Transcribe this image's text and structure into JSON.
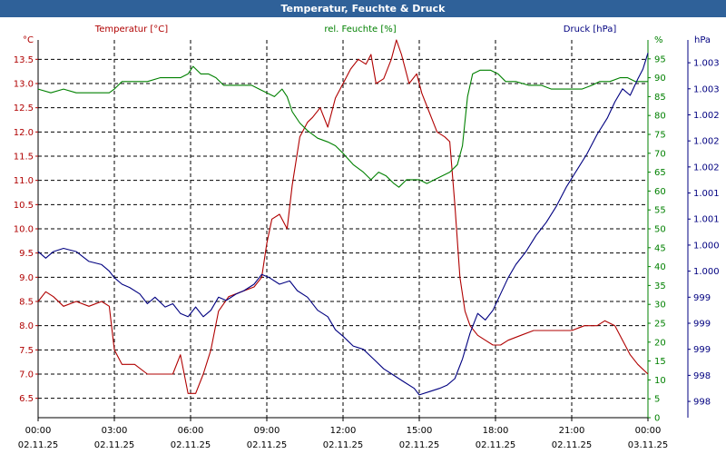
{
  "window": {
    "title": "Temperatur, Feuchte & Druck"
  },
  "chart_data": {
    "type": "line",
    "title": "Temperatur, Feuchte & Druck",
    "legend": "top",
    "grid": true,
    "x_ticks": [
      {
        "h": 0,
        "time": "00:00",
        "date": "02.11.25"
      },
      {
        "h": 3,
        "time": "03:00",
        "date": "02.11.25"
      },
      {
        "h": 6,
        "time": "06:00",
        "date": "02.11.25"
      },
      {
        "h": 9,
        "time": "09:00",
        "date": "02.11.25"
      },
      {
        "h": 12,
        "time": "12:00",
        "date": "02.11.25"
      },
      {
        "h": 15,
        "time": "15:00",
        "date": "02.11.25"
      },
      {
        "h": 18,
        "time": "18:00",
        "date": "02.11.25"
      },
      {
        "h": 21,
        "time": "21:00",
        "date": "02.11.25"
      },
      {
        "h": 24,
        "time": "00:00",
        "date": "03.11.25"
      }
    ],
    "xlim": [
      0,
      24
    ],
    "axes": {
      "temperature": {
        "label": "Temperatur [°C]",
        "unit": "°C",
        "color": "#b00000",
        "ylim": [
          6.1,
          13.9
        ],
        "ticks": [
          6.5,
          7.0,
          7.5,
          8.0,
          8.5,
          9.0,
          9.5,
          10.0,
          10.5,
          11.0,
          11.5,
          12.0,
          12.5,
          13.0,
          13.5
        ],
        "tick_labels": [
          "6.5",
          "7.0",
          "7.5",
          "8.0",
          "8.5",
          "9.0",
          "9.5",
          "10.0",
          "10.5",
          "11.0",
          "11.5",
          "12.0",
          "12.5",
          "13.0",
          "13.5"
        ]
      },
      "humidity": {
        "label": "rel. Feuchte [%]",
        "unit": "%",
        "color": "#008000",
        "ylim": [
          0,
          100
        ],
        "ticks": [
          0,
          5,
          10,
          15,
          20,
          25,
          30,
          35,
          40,
          45,
          50,
          55,
          60,
          65,
          70,
          75,
          80,
          85,
          90,
          95
        ],
        "tick_labels": [
          "0",
          "5",
          "10",
          "15",
          "20",
          "25",
          "30",
          "35",
          "40",
          "45",
          "50",
          "55",
          "60",
          "65",
          "70",
          "75",
          "80",
          "85",
          "90",
          "95"
        ]
      },
      "pressure": {
        "label": "Druck [hPa]",
        "unit": "hPa",
        "color": "#000080",
        "ylim": [
          997.7,
          1003.5
        ],
        "ticks": [
          997.95,
          998.35,
          998.75,
          999.15,
          999.55,
          999.95,
          1000.35,
          1000.75,
          1001.15,
          1001.55,
          1001.95,
          1002.35,
          1002.75,
          1003.15
        ],
        "tick_labels": [
          "998",
          "998",
          "999",
          "999",
          "999",
          "1.000",
          "1.000",
          "1.001",
          "1.001",
          "1.002",
          "1.002",
          "1.002",
          "1.003",
          "1.003"
        ]
      }
    },
    "series": [
      {
        "name": "Temperatur",
        "axis": "temperature",
        "color": "#b00000",
        "points": [
          [
            0,
            8.5
          ],
          [
            0.3,
            8.7
          ],
          [
            0.6,
            8.6
          ],
          [
            1.0,
            8.4
          ],
          [
            1.5,
            8.5
          ],
          [
            2.0,
            8.4
          ],
          [
            2.5,
            8.5
          ],
          [
            2.8,
            8.4
          ],
          [
            3.0,
            7.5
          ],
          [
            3.3,
            7.2
          ],
          [
            3.8,
            7.2
          ],
          [
            4.3,
            7.0
          ],
          [
            4.8,
            7.0
          ],
          [
            5.3,
            7.0
          ],
          [
            5.6,
            7.4
          ],
          [
            5.9,
            6.6
          ],
          [
            6.2,
            6.6
          ],
          [
            6.5,
            7.0
          ],
          [
            6.8,
            7.5
          ],
          [
            7.1,
            8.3
          ],
          [
            7.5,
            8.6
          ],
          [
            8.0,
            8.7
          ],
          [
            8.5,
            8.8
          ],
          [
            8.8,
            9.0
          ],
          [
            9.0,
            9.7
          ],
          [
            9.2,
            10.2
          ],
          [
            9.5,
            10.3
          ],
          [
            9.8,
            10.0
          ],
          [
            10.0,
            10.9
          ],
          [
            10.3,
            11.9
          ],
          [
            10.6,
            12.2
          ],
          [
            10.8,
            12.3
          ],
          [
            11.1,
            12.5
          ],
          [
            11.4,
            12.1
          ],
          [
            11.7,
            12.7
          ],
          [
            12.0,
            13.0
          ],
          [
            12.3,
            13.3
          ],
          [
            12.6,
            13.5
          ],
          [
            12.9,
            13.4
          ],
          [
            13.1,
            13.6
          ],
          [
            13.3,
            13.0
          ],
          [
            13.6,
            13.1
          ],
          [
            13.9,
            13.5
          ],
          [
            14.1,
            13.9
          ],
          [
            14.3,
            13.6
          ],
          [
            14.6,
            13.0
          ],
          [
            14.9,
            13.2
          ],
          [
            15.1,
            12.8
          ],
          [
            15.4,
            12.4
          ],
          [
            15.7,
            12.0
          ],
          [
            16.0,
            11.9
          ],
          [
            16.2,
            11.8
          ],
          [
            16.4,
            10.5
          ],
          [
            16.6,
            9.0
          ],
          [
            16.8,
            8.3
          ],
          [
            17.0,
            8.0
          ],
          [
            17.3,
            7.8
          ],
          [
            17.6,
            7.7
          ],
          [
            17.9,
            7.6
          ],
          [
            18.2,
            7.6
          ],
          [
            18.5,
            7.7
          ],
          [
            19.0,
            7.8
          ],
          [
            19.5,
            7.9
          ],
          [
            20.0,
            7.9
          ],
          [
            20.5,
            7.9
          ],
          [
            21.0,
            7.9
          ],
          [
            21.5,
            8.0
          ],
          [
            22.0,
            8.0
          ],
          [
            22.3,
            8.1
          ],
          [
            22.7,
            8.0
          ],
          [
            23.0,
            7.7
          ],
          [
            23.3,
            7.4
          ],
          [
            23.6,
            7.2
          ],
          [
            24.0,
            7.0
          ]
        ]
      },
      {
        "name": "rel. Feuchte",
        "axis": "humidity",
        "color": "#008000",
        "points": [
          [
            0,
            87
          ],
          [
            0.5,
            86
          ],
          [
            1.0,
            87
          ],
          [
            1.5,
            86
          ],
          [
            2.0,
            86
          ],
          [
            2.5,
            86
          ],
          [
            2.8,
            86
          ],
          [
            3.0,
            87
          ],
          [
            3.3,
            89
          ],
          [
            3.8,
            89
          ],
          [
            4.3,
            89
          ],
          [
            4.8,
            90
          ],
          [
            5.3,
            90
          ],
          [
            5.6,
            90
          ],
          [
            5.9,
            91
          ],
          [
            6.1,
            93
          ],
          [
            6.4,
            91
          ],
          [
            6.7,
            91
          ],
          [
            7.0,
            90
          ],
          [
            7.3,
            88
          ],
          [
            7.6,
            88
          ],
          [
            8.0,
            88
          ],
          [
            8.4,
            88
          ],
          [
            8.7,
            87
          ],
          [
            9.0,
            86
          ],
          [
            9.3,
            85
          ],
          [
            9.6,
            87
          ],
          [
            9.8,
            85
          ],
          [
            10.0,
            81
          ],
          [
            10.3,
            78
          ],
          [
            10.6,
            76
          ],
          [
            11.0,
            74
          ],
          [
            11.4,
            73
          ],
          [
            11.7,
            72
          ],
          [
            12.0,
            70
          ],
          [
            12.4,
            67
          ],
          [
            12.8,
            65
          ],
          [
            13.1,
            63
          ],
          [
            13.4,
            65
          ],
          [
            13.7,
            64
          ],
          [
            14.0,
            62
          ],
          [
            14.2,
            61
          ],
          [
            14.5,
            63
          ],
          [
            14.8,
            63
          ],
          [
            15.0,
            63
          ],
          [
            15.3,
            62
          ],
          [
            15.6,
            63
          ],
          [
            15.9,
            64
          ],
          [
            16.2,
            65
          ],
          [
            16.5,
            67
          ],
          [
            16.7,
            72
          ],
          [
            16.9,
            85
          ],
          [
            17.1,
            91
          ],
          [
            17.4,
            92
          ],
          [
            17.8,
            92
          ],
          [
            18.1,
            91
          ],
          [
            18.4,
            89
          ],
          [
            18.8,
            89
          ],
          [
            19.3,
            88
          ],
          [
            19.8,
            88
          ],
          [
            20.2,
            87
          ],
          [
            20.6,
            87
          ],
          [
            21.0,
            87
          ],
          [
            21.4,
            87
          ],
          [
            21.8,
            88
          ],
          [
            22.1,
            89
          ],
          [
            22.5,
            89
          ],
          [
            22.9,
            90
          ],
          [
            23.2,
            90
          ],
          [
            23.5,
            89
          ],
          [
            24.0,
            89
          ]
        ]
      },
      {
        "name": "Druck",
        "axis": "pressure",
        "color": "#000080",
        "points": [
          [
            0,
            1000.25
          ],
          [
            0.3,
            1000.15
          ],
          [
            0.6,
            1000.25
          ],
          [
            1.0,
            1000.3
          ],
          [
            1.5,
            1000.25
          ],
          [
            2.0,
            1000.1
          ],
          [
            2.5,
            1000.05
          ],
          [
            2.8,
            999.95
          ],
          [
            3.0,
            999.85
          ],
          [
            3.3,
            999.75
          ],
          [
            3.6,
            999.7
          ],
          [
            4.0,
            999.6
          ],
          [
            4.3,
            999.45
          ],
          [
            4.6,
            999.55
          ],
          [
            5.0,
            999.4
          ],
          [
            5.3,
            999.45
          ],
          [
            5.6,
            999.3
          ],
          [
            5.9,
            999.25
          ],
          [
            6.2,
            999.4
          ],
          [
            6.5,
            999.25
          ],
          [
            6.8,
            999.35
          ],
          [
            7.1,
            999.55
          ],
          [
            7.4,
            999.5
          ],
          [
            7.8,
            999.6
          ],
          [
            8.1,
            999.65
          ],
          [
            8.5,
            999.75
          ],
          [
            8.8,
            999.9
          ],
          [
            9.1,
            999.85
          ],
          [
            9.5,
            999.75
          ],
          [
            9.9,
            999.8
          ],
          [
            10.2,
            999.65
          ],
          [
            10.6,
            999.55
          ],
          [
            11.0,
            999.35
          ],
          [
            11.4,
            999.25
          ],
          [
            11.7,
            999.05
          ],
          [
            12.0,
            998.95
          ],
          [
            12.4,
            998.8
          ],
          [
            12.8,
            998.75
          ],
          [
            13.2,
            998.6
          ],
          [
            13.6,
            998.45
          ],
          [
            14.0,
            998.35
          ],
          [
            14.4,
            998.25
          ],
          [
            14.8,
            998.15
          ],
          [
            15.0,
            998.05
          ],
          [
            15.4,
            998.1
          ],
          [
            15.8,
            998.15
          ],
          [
            16.1,
            998.2
          ],
          [
            16.4,
            998.3
          ],
          [
            16.7,
            998.6
          ],
          [
            17.0,
            999.0
          ],
          [
            17.3,
            999.3
          ],
          [
            17.6,
            999.2
          ],
          [
            17.9,
            999.35
          ],
          [
            18.2,
            999.6
          ],
          [
            18.5,
            999.85
          ],
          [
            18.8,
            1000.05
          ],
          [
            19.2,
            1000.25
          ],
          [
            19.6,
            1000.5
          ],
          [
            20.0,
            1000.7
          ],
          [
            20.4,
            1000.95
          ],
          [
            20.8,
            1001.25
          ],
          [
            21.2,
            1001.5
          ],
          [
            21.6,
            1001.75
          ],
          [
            22.0,
            1002.05
          ],
          [
            22.4,
            1002.3
          ],
          [
            22.7,
            1002.55
          ],
          [
            23.0,
            1002.75
          ],
          [
            23.3,
            1002.65
          ],
          [
            23.6,
            1002.9
          ],
          [
            23.8,
            1003.05
          ],
          [
            24.0,
            1003.3
          ]
        ]
      }
    ]
  }
}
